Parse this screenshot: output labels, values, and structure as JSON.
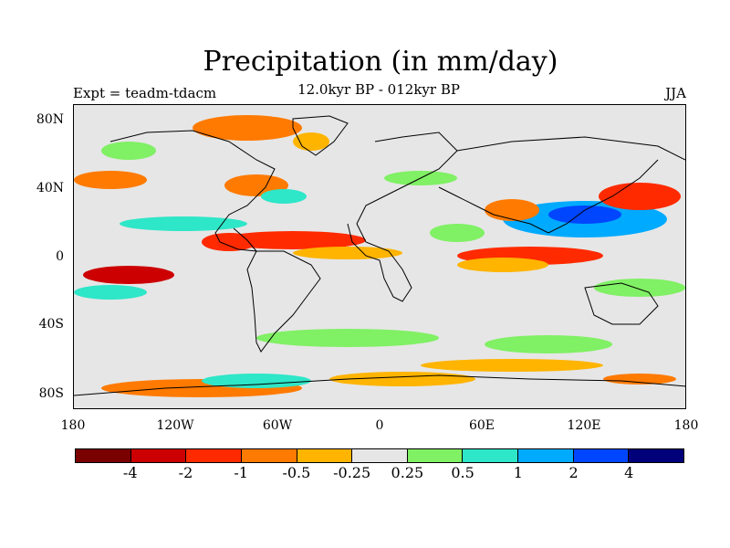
{
  "title": "Precipitation (in mm/day)",
  "subtitle": "12.0kyr BP - 012kyr BP",
  "expt": "Expt = teadm-tdacm",
  "season": "JJA",
  "map": {
    "y_ticks": [
      "80N",
      "40N",
      "0",
      "40S",
      "80S"
    ],
    "x_ticks": [
      "180",
      "120W",
      "60W",
      "0",
      "60E",
      "120E",
      "180"
    ],
    "background_color": "#e6e6e6"
  },
  "colorbar": {
    "colors": [
      "#7a0000",
      "#cc0000",
      "#ff2a00",
      "#ff7a00",
      "#ffb400",
      "#e6e6e6",
      "#80f064",
      "#2ee6c8",
      "#00aaff",
      "#0046ff",
      "#00007a"
    ],
    "labels": [
      "-4",
      "-2",
      "-1",
      "-0.5",
      "-0.25",
      "0.25",
      "0.5",
      "1",
      "2",
      "4"
    ]
  }
}
